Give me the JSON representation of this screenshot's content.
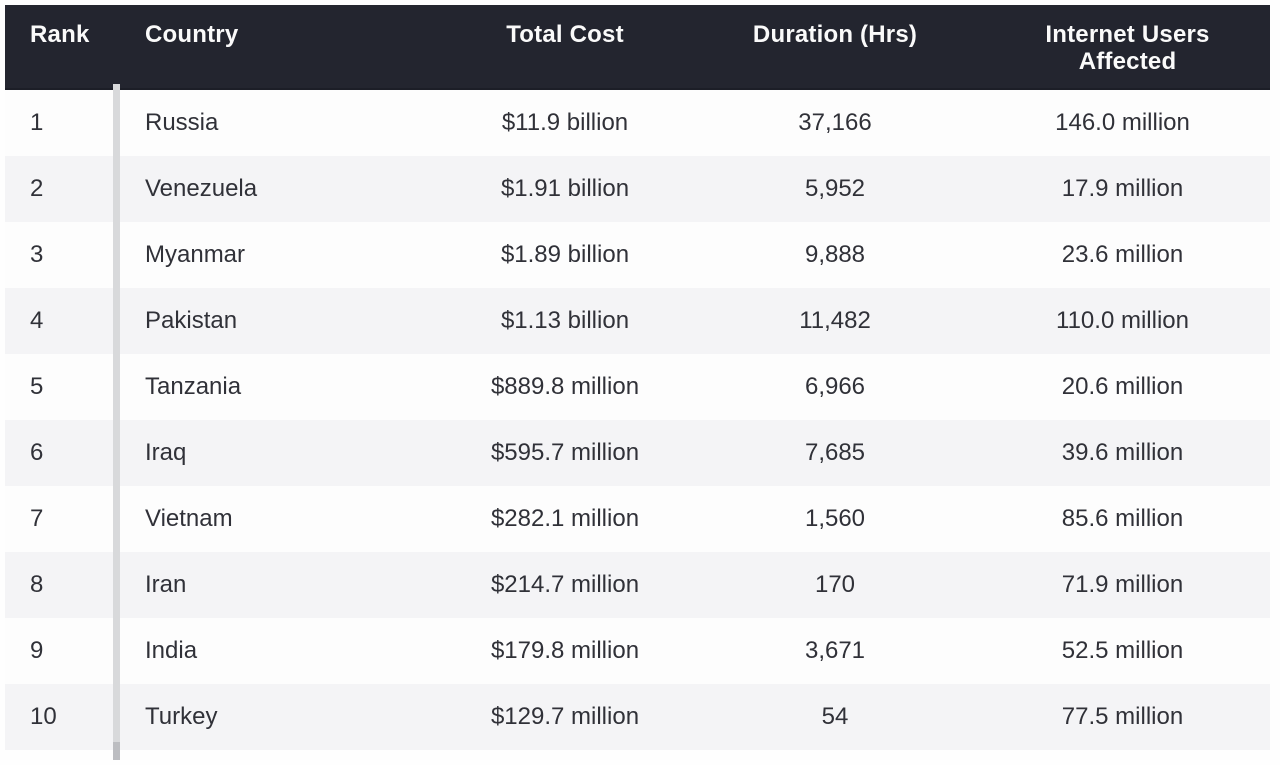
{
  "title": "Internet shutdown cost ranking table",
  "colors": {
    "header_bg": "#23252f",
    "header_text": "#fafafa",
    "row_bg_even": "#fdfdfd",
    "row_bg_odd": "#f4f4f6",
    "body_text": "#303138",
    "rank_divider": "#d8d9db"
  },
  "table": {
    "columns": [
      {
        "key": "rank",
        "label": "Rank"
      },
      {
        "key": "country",
        "label": "Country"
      },
      {
        "key": "total_cost",
        "label": "Total Cost"
      },
      {
        "key": "duration_hrs",
        "label": "Duration (Hrs)"
      },
      {
        "key": "users_affected",
        "label": "Internet Users Affected"
      }
    ],
    "rows": [
      {
        "rank": "1",
        "country": "Russia",
        "total_cost": "$11.9 billion",
        "duration_hrs": "37,166",
        "users_affected": "146.0 million"
      },
      {
        "rank": "2",
        "country": "Venezuela",
        "total_cost": "$1.91 billion",
        "duration_hrs": "5,952",
        "users_affected": "17.9 million"
      },
      {
        "rank": "3",
        "country": "Myanmar",
        "total_cost": "$1.89 billion",
        "duration_hrs": "9,888",
        "users_affected": "23.6 million"
      },
      {
        "rank": "4",
        "country": "Pakistan",
        "total_cost": "$1.13 billion",
        "duration_hrs": "11,482",
        "users_affected": "110.0 million"
      },
      {
        "rank": "5",
        "country": "Tanzania",
        "total_cost": "$889.8 million",
        "duration_hrs": "6,966",
        "users_affected": "20.6 million"
      },
      {
        "rank": "6",
        "country": "Iraq",
        "total_cost": "$595.7 million",
        "duration_hrs": "7,685",
        "users_affected": "39.6 million"
      },
      {
        "rank": "7",
        "country": "Vietnam",
        "total_cost": "$282.1 million",
        "duration_hrs": "1,560",
        "users_affected": "85.6 million"
      },
      {
        "rank": "8",
        "country": "Iran",
        "total_cost": "$214.7 million",
        "duration_hrs": "170",
        "users_affected": "71.9 million"
      },
      {
        "rank": "9",
        "country": "India",
        "total_cost": "$179.8 million",
        "duration_hrs": "3,671",
        "users_affected": "52.5 million"
      },
      {
        "rank": "10",
        "country": "Turkey",
        "total_cost": "$129.7 million",
        "duration_hrs": "54",
        "users_affected": "77.5 million"
      }
    ]
  },
  "chart_data": {
    "type": "table",
    "title": "Cost of internet shutdowns by country",
    "columns": [
      "Rank",
      "Country",
      "Total Cost",
      "Duration (Hrs)",
      "Internet Users Affected"
    ],
    "rows": [
      [
        "1",
        "Russia",
        "$11.9 billion",
        "37,166",
        "146.0 million"
      ],
      [
        "2",
        "Venezuela",
        "$1.91 billion",
        "5,952",
        "17.9 million"
      ],
      [
        "3",
        "Myanmar",
        "$1.89 billion",
        "9,888",
        "23.6 million"
      ],
      [
        "4",
        "Pakistan",
        "$1.13 billion",
        "11,482",
        "110.0 million"
      ],
      [
        "5",
        "Tanzania",
        "$889.8 million",
        "6,966",
        "20.6 million"
      ],
      [
        "6",
        "Iraq",
        "$595.7 million",
        "7,685",
        "39.6 million"
      ],
      [
        "7",
        "Vietnam",
        "$282.1 million",
        "1,560",
        "85.6 million"
      ],
      [
        "8",
        "Iran",
        "$214.7 million",
        "170",
        "71.9 million"
      ],
      [
        "9",
        "India",
        "$179.8 million",
        "3,671",
        "52.5 million"
      ],
      [
        "10",
        "Turkey",
        "$129.7 million",
        "54",
        "77.5 million"
      ]
    ],
    "numeric": {
      "total_cost_usd_millions": [
        11900,
        1910,
        1890,
        1130,
        889.8,
        595.7,
        282.1,
        214.7,
        179.8,
        129.7
      ],
      "duration_hours": [
        37166,
        5952,
        9888,
        11482,
        6966,
        7685,
        1560,
        170,
        3671,
        54
      ],
      "internet_users_affected_millions": [
        146.0,
        17.9,
        23.6,
        110.0,
        20.6,
        39.6,
        85.6,
        71.9,
        52.5,
        77.5
      ]
    }
  }
}
